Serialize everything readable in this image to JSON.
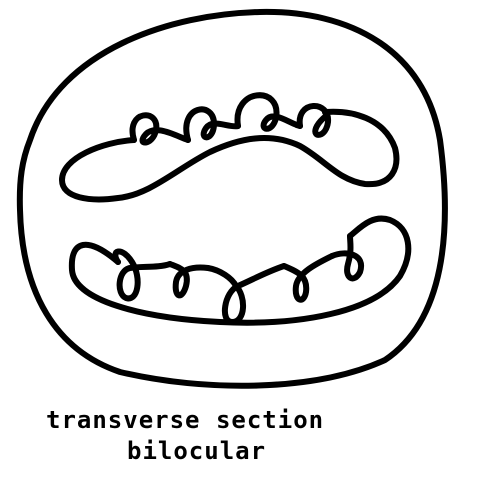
{
  "diagram": {
    "caption_line_1": "transverse section",
    "caption_line_2": "bilocular",
    "ink_color": "#000000",
    "background_color": "#ffffff"
  }
}
